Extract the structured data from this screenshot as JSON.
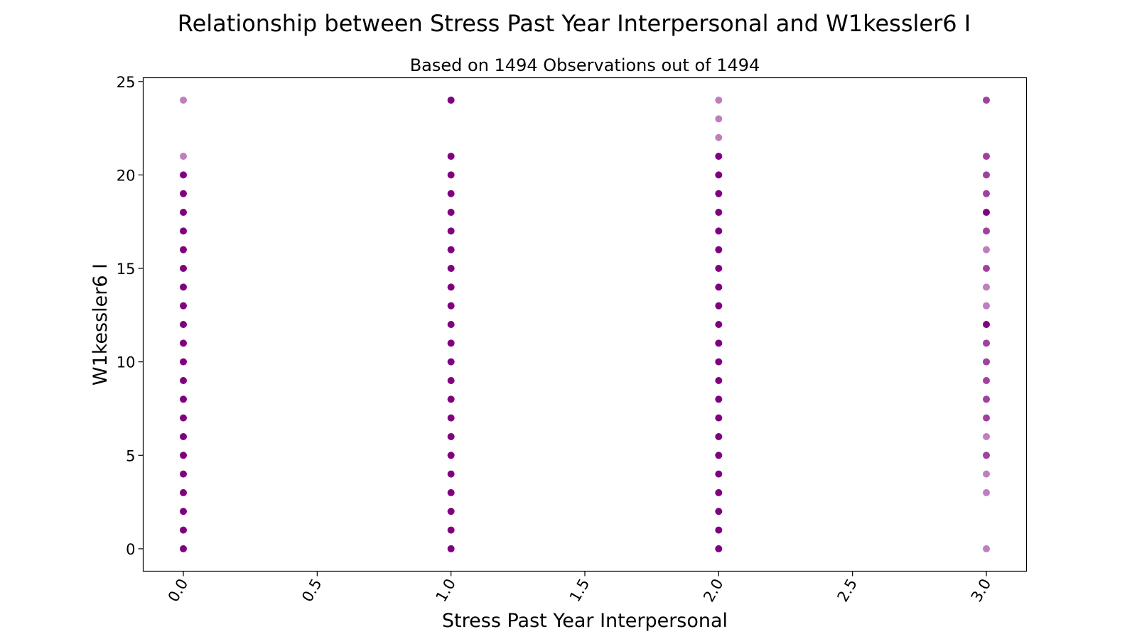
{
  "chart_data": {
    "type": "scatter",
    "title": "Relationship between Stress Past Year Interpersonal and W1kessler6 I",
    "subtitle": "Based on 1494 Observations out of 1494",
    "xlabel": "Stress Past Year Interpersonal",
    "ylabel": "W1kessler6 I",
    "xlim": [
      -0.15,
      3.15
    ],
    "ylim": [
      -1.2,
      25.2
    ],
    "x_ticks": [
      "0.0",
      "0.5",
      "1.0",
      "1.5",
      "2.0",
      "2.5",
      "3.0"
    ],
    "y_ticks": [
      "0",
      "5",
      "10",
      "15",
      "20",
      "25"
    ],
    "grid": false,
    "marker_color": "#800080",
    "points": [
      {
        "x": 0,
        "y": 0,
        "alpha": 1.0
      },
      {
        "x": 0,
        "y": 1,
        "alpha": 1.0
      },
      {
        "x": 0,
        "y": 2,
        "alpha": 1.0
      },
      {
        "x": 0,
        "y": 3,
        "alpha": 1.0
      },
      {
        "x": 0,
        "y": 4,
        "alpha": 1.0
      },
      {
        "x": 0,
        "y": 5,
        "alpha": 1.0
      },
      {
        "x": 0,
        "y": 6,
        "alpha": 1.0
      },
      {
        "x": 0,
        "y": 7,
        "alpha": 1.0
      },
      {
        "x": 0,
        "y": 8,
        "alpha": 1.0
      },
      {
        "x": 0,
        "y": 9,
        "alpha": 1.0
      },
      {
        "x": 0,
        "y": 10,
        "alpha": 1.0
      },
      {
        "x": 0,
        "y": 11,
        "alpha": 1.0
      },
      {
        "x": 0,
        "y": 12,
        "alpha": 1.0
      },
      {
        "x": 0,
        "y": 13,
        "alpha": 1.0
      },
      {
        "x": 0,
        "y": 14,
        "alpha": 1.0
      },
      {
        "x": 0,
        "y": 15,
        "alpha": 1.0
      },
      {
        "x": 0,
        "y": 16,
        "alpha": 1.0
      },
      {
        "x": 0,
        "y": 17,
        "alpha": 1.0
      },
      {
        "x": 0,
        "y": 18,
        "alpha": 1.0
      },
      {
        "x": 0,
        "y": 19,
        "alpha": 1.0
      },
      {
        "x": 0,
        "y": 20,
        "alpha": 1.0
      },
      {
        "x": 0,
        "y": 21,
        "alpha": 0.5
      },
      {
        "x": 0,
        "y": 24,
        "alpha": 0.5
      },
      {
        "x": 1,
        "y": 0,
        "alpha": 1.0
      },
      {
        "x": 1,
        "y": 1,
        "alpha": 1.0
      },
      {
        "x": 1,
        "y": 2,
        "alpha": 1.0
      },
      {
        "x": 1,
        "y": 3,
        "alpha": 1.0
      },
      {
        "x": 1,
        "y": 4,
        "alpha": 1.0
      },
      {
        "x": 1,
        "y": 5,
        "alpha": 1.0
      },
      {
        "x": 1,
        "y": 6,
        "alpha": 1.0
      },
      {
        "x": 1,
        "y": 7,
        "alpha": 1.0
      },
      {
        "x": 1,
        "y": 8,
        "alpha": 1.0
      },
      {
        "x": 1,
        "y": 9,
        "alpha": 1.0
      },
      {
        "x": 1,
        "y": 10,
        "alpha": 1.0
      },
      {
        "x": 1,
        "y": 11,
        "alpha": 1.0
      },
      {
        "x": 1,
        "y": 12,
        "alpha": 1.0
      },
      {
        "x": 1,
        "y": 13,
        "alpha": 1.0
      },
      {
        "x": 1,
        "y": 14,
        "alpha": 1.0
      },
      {
        "x": 1,
        "y": 15,
        "alpha": 1.0
      },
      {
        "x": 1,
        "y": 16,
        "alpha": 1.0
      },
      {
        "x": 1,
        "y": 17,
        "alpha": 1.0
      },
      {
        "x": 1,
        "y": 18,
        "alpha": 1.0
      },
      {
        "x": 1,
        "y": 19,
        "alpha": 1.0
      },
      {
        "x": 1,
        "y": 20,
        "alpha": 1.0
      },
      {
        "x": 1,
        "y": 21,
        "alpha": 1.0
      },
      {
        "x": 1,
        "y": 24,
        "alpha": 1.0
      },
      {
        "x": 2,
        "y": 0,
        "alpha": 1.0
      },
      {
        "x": 2,
        "y": 1,
        "alpha": 1.0
      },
      {
        "x": 2,
        "y": 2,
        "alpha": 1.0
      },
      {
        "x": 2,
        "y": 3,
        "alpha": 1.0
      },
      {
        "x": 2,
        "y": 4,
        "alpha": 1.0
      },
      {
        "x": 2,
        "y": 5,
        "alpha": 1.0
      },
      {
        "x": 2,
        "y": 6,
        "alpha": 1.0
      },
      {
        "x": 2,
        "y": 7,
        "alpha": 1.0
      },
      {
        "x": 2,
        "y": 8,
        "alpha": 1.0
      },
      {
        "x": 2,
        "y": 9,
        "alpha": 1.0
      },
      {
        "x": 2,
        "y": 10,
        "alpha": 1.0
      },
      {
        "x": 2,
        "y": 11,
        "alpha": 1.0
      },
      {
        "x": 2,
        "y": 12,
        "alpha": 1.0
      },
      {
        "x": 2,
        "y": 13,
        "alpha": 1.0
      },
      {
        "x": 2,
        "y": 14,
        "alpha": 1.0
      },
      {
        "x": 2,
        "y": 15,
        "alpha": 1.0
      },
      {
        "x": 2,
        "y": 16,
        "alpha": 1.0
      },
      {
        "x": 2,
        "y": 17,
        "alpha": 1.0
      },
      {
        "x": 2,
        "y": 18,
        "alpha": 1.0
      },
      {
        "x": 2,
        "y": 19,
        "alpha": 1.0
      },
      {
        "x": 2,
        "y": 20,
        "alpha": 1.0
      },
      {
        "x": 2,
        "y": 21,
        "alpha": 1.0
      },
      {
        "x": 2,
        "y": 22,
        "alpha": 0.5
      },
      {
        "x": 2,
        "y": 23,
        "alpha": 0.5
      },
      {
        "x": 2,
        "y": 24,
        "alpha": 0.5
      },
      {
        "x": 3,
        "y": 0,
        "alpha": 0.5
      },
      {
        "x": 3,
        "y": 3,
        "alpha": 0.5
      },
      {
        "x": 3,
        "y": 4,
        "alpha": 0.5
      },
      {
        "x": 3,
        "y": 5,
        "alpha": 0.75
      },
      {
        "x": 3,
        "y": 6,
        "alpha": 0.5
      },
      {
        "x": 3,
        "y": 7,
        "alpha": 0.75
      },
      {
        "x": 3,
        "y": 8,
        "alpha": 0.75
      },
      {
        "x": 3,
        "y": 9,
        "alpha": 0.75
      },
      {
        "x": 3,
        "y": 10,
        "alpha": 0.75
      },
      {
        "x": 3,
        "y": 11,
        "alpha": 0.75
      },
      {
        "x": 3,
        "y": 12,
        "alpha": 1.0
      },
      {
        "x": 3,
        "y": 13,
        "alpha": 0.5
      },
      {
        "x": 3,
        "y": 14,
        "alpha": 0.5
      },
      {
        "x": 3,
        "y": 15,
        "alpha": 0.75
      },
      {
        "x": 3,
        "y": 16,
        "alpha": 0.5
      },
      {
        "x": 3,
        "y": 17,
        "alpha": 0.75
      },
      {
        "x": 3,
        "y": 18,
        "alpha": 1.0
      },
      {
        "x": 3,
        "y": 19,
        "alpha": 0.75
      },
      {
        "x": 3,
        "y": 20,
        "alpha": 0.75
      },
      {
        "x": 3,
        "y": 21,
        "alpha": 0.75
      },
      {
        "x": 3,
        "y": 24,
        "alpha": 0.75
      }
    ]
  }
}
